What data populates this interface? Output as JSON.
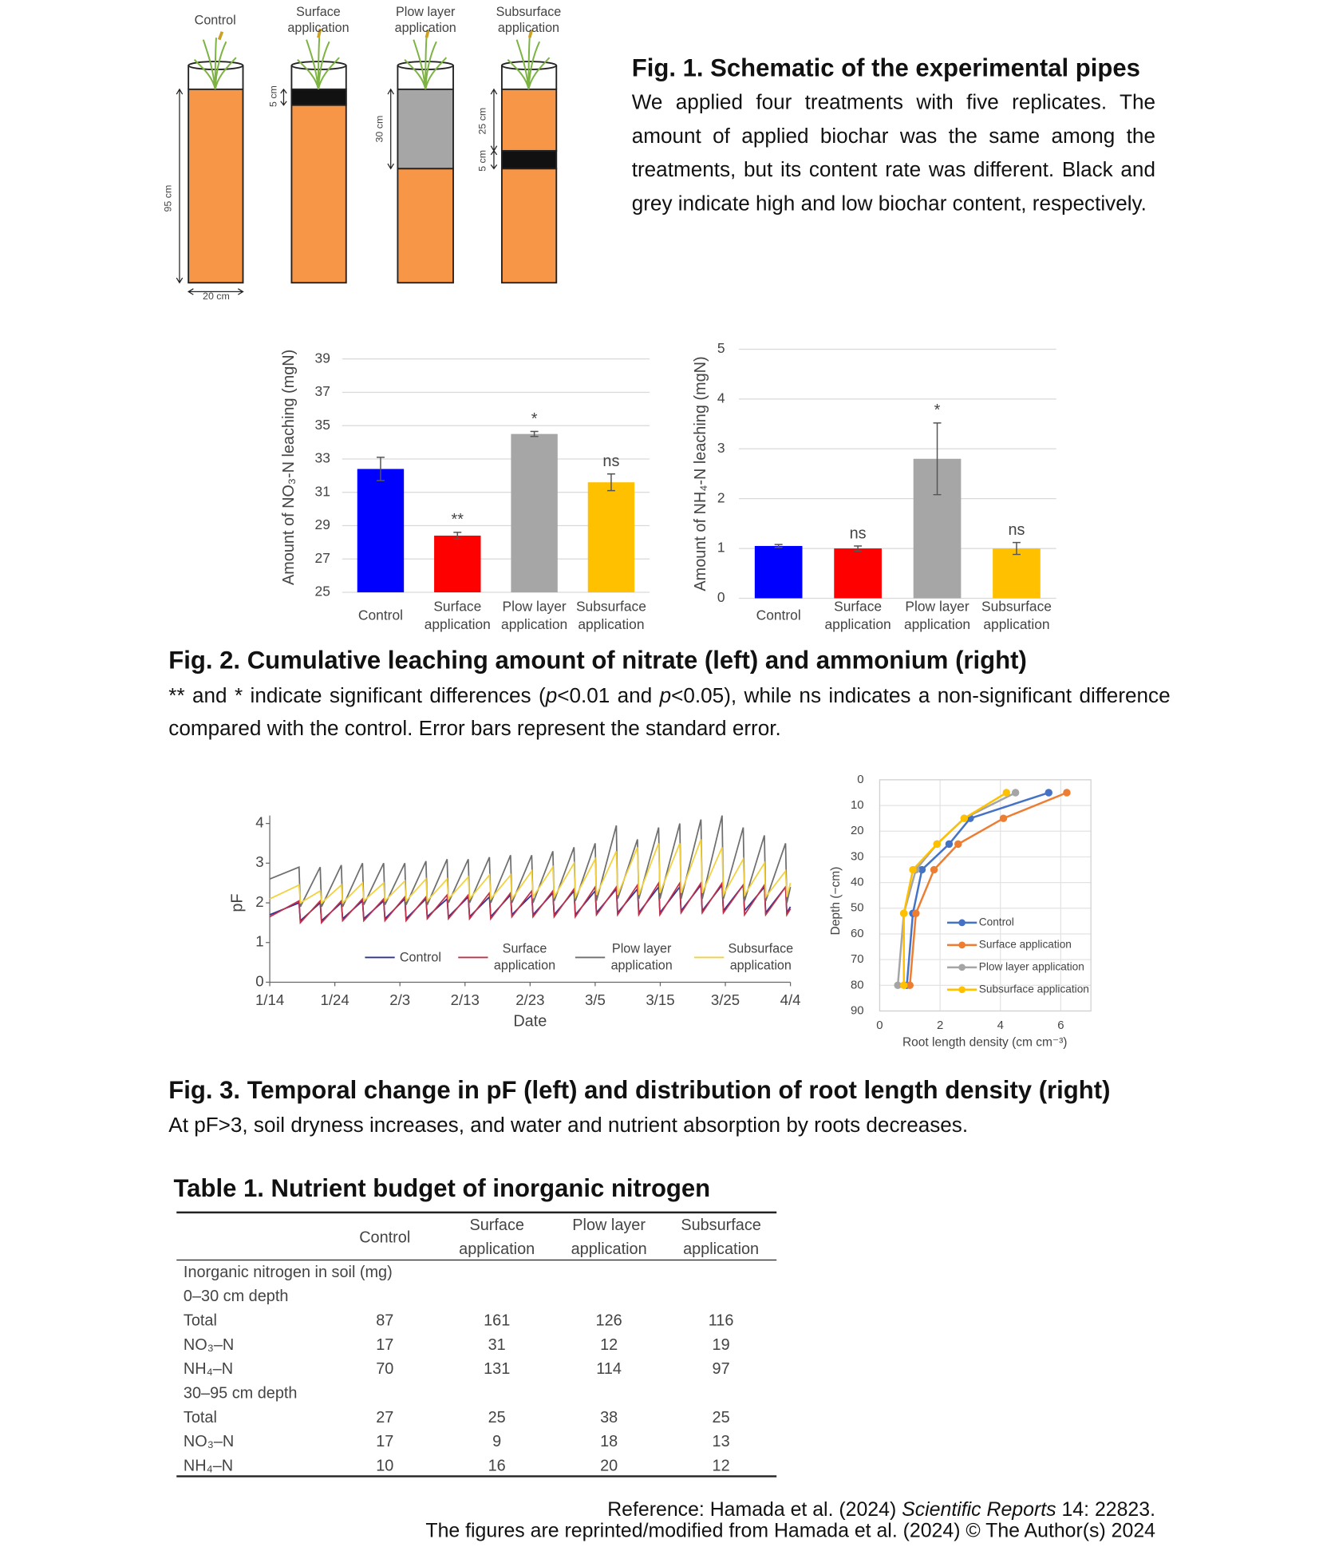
{
  "fig1": {
    "pipes": [
      "Control",
      "Surface application",
      "Plow layer application",
      "Subsurface application"
    ],
    "dims": {
      "surface_band": "5 cm",
      "plow_band": "30 cm",
      "subsurface_top": "25 cm",
      "subsurface_band": "5 cm",
      "height": "95 cm",
      "width": "20 cm"
    },
    "title": "Fig. 1. Schematic of the experimental pipes",
    "text": "We applied four treatments with five replicates. The amount of applied biochar was the same among the treatments, but its content rate was different. Black and grey indicate high and low biochar content, respectively."
  },
  "fig2": {
    "title": "Fig. 2. Cumulative leaching amount of nitrate (left) and ammonium (right)",
    "text": [
      "** and * indicate significant differences (",
      "p",
      "<0.01 and ",
      "p",
      "<0.05), while ns indicates a non-significant difference compared with the control. Error bars represent the standard error."
    ]
  },
  "fig3": {
    "title": "Fig. 3. Temporal change in pF (left) and distribution of root length density (right)",
    "text": "At pF>3, soil dryness increases, and water and nutrient absorption by roots decreases."
  },
  "chart_data": [
    {
      "type": "bar",
      "ylabel": "Amount of NO₃-N leaching (mgN)",
      "categories": [
        "Control",
        "Surface application",
        "Plow layer application",
        "Subsurface application"
      ],
      "values": [
        32.4,
        28.4,
        34.5,
        31.6
      ],
      "errors": [
        0.7,
        0.2,
        0.15,
        0.5
      ],
      "annotations": [
        null,
        "**",
        "*",
        "ns"
      ],
      "colors": [
        "#0000ff",
        "#ff0000",
        "#a6a6a6",
        "#ffc000"
      ],
      "ylim": [
        25,
        40
      ],
      "yticks": [
        25,
        27,
        29,
        31,
        33,
        35,
        37,
        39
      ],
      "grid": true
    },
    {
      "type": "bar",
      "ylabel": "Amount of NH₄-N leaching (mgN)",
      "categories": [
        "Control",
        "Surface application",
        "Plow layer application",
        "Subsurface application"
      ],
      "values": [
        1.05,
        1.0,
        2.8,
        1.0
      ],
      "errors": [
        0.03,
        0.05,
        0.72,
        0.12
      ],
      "annotations": [
        null,
        "ns",
        "*",
        "ns"
      ],
      "colors": [
        "#0000ff",
        "#ff0000",
        "#a6a6a6",
        "#ffc000"
      ],
      "ylim": [
        0,
        5
      ],
      "yticks": [
        0,
        1,
        2,
        3,
        4,
        5
      ],
      "grid": true
    },
    {
      "type": "line",
      "ylabel": "pF",
      "xlabel": "Date",
      "x": [
        0,
        4.5,
        4.7,
        7.75,
        7.95,
        11,
        11.2,
        14.25,
        14.45,
        17.5,
        17.7,
        20.75,
        20.95,
        24,
        24.2,
        27.25,
        27.45,
        30.5,
        30.7,
        33.75,
        33.95,
        37,
        37.2,
        40.25,
        40.45,
        43.5,
        43.7,
        46.75,
        46.95,
        50,
        50.2,
        53.25,
        53.45,
        56.5,
        56.7,
        59.75,
        59.95,
        63,
        63.2,
        66.25,
        66.45,
        69.5,
        69.7,
        72.75,
        72.95,
        76,
        76.2,
        79.25,
        79.45,
        80
      ],
      "series": [
        {
          "name": "Control",
          "color": "#2e3192",
          "values": [
            1.7,
            2.0,
            1.55,
            2.0,
            1.55,
            2.0,
            1.6,
            2.05,
            1.6,
            2.05,
            1.6,
            2.1,
            1.6,
            2.1,
            1.65,
            2.1,
            1.65,
            2.15,
            1.65,
            2.15,
            1.65,
            2.2,
            1.7,
            2.2,
            1.7,
            2.25,
            1.7,
            2.3,
            1.7,
            2.3,
            1.75,
            2.35,
            1.75,
            2.35,
            1.75,
            2.4,
            1.75,
            2.4,
            1.8,
            2.45,
            1.8,
            2.45,
            1.8,
            2.45,
            1.8,
            2.4,
            1.75,
            2.4,
            1.75,
            1.9
          ]
        },
        {
          "name": "Surface application",
          "color": "#c0304a",
          "values": [
            1.65,
            2.05,
            1.5,
            2.05,
            1.5,
            2.05,
            1.55,
            2.1,
            1.55,
            2.1,
            1.55,
            2.15,
            1.55,
            2.15,
            1.6,
            2.2,
            1.6,
            2.2,
            1.6,
            2.25,
            1.6,
            2.25,
            1.65,
            2.3,
            1.65,
            2.3,
            1.65,
            2.35,
            1.65,
            2.4,
            1.7,
            2.4,
            1.7,
            2.45,
            1.7,
            2.5,
            1.7,
            2.5,
            1.75,
            2.5,
            1.75,
            2.5,
            1.75,
            2.45,
            1.7,
            2.45,
            1.7,
            2.4,
            1.7,
            1.85
          ]
        },
        {
          "name": "Plow layer application",
          "color": "#6e6e6e",
          "values": [
            2.6,
            2.9,
            1.9,
            2.9,
            1.9,
            2.95,
            1.9,
            3.0,
            1.95,
            3.0,
            1.95,
            3.0,
            1.95,
            3.05,
            1.95,
            3.1,
            2.0,
            3.1,
            2.0,
            3.15,
            2.0,
            3.2,
            2.0,
            3.2,
            2.0,
            3.3,
            2.05,
            3.4,
            2.05,
            3.5,
            2.05,
            3.95,
            2.1,
            3.6,
            2.1,
            3.9,
            2.1,
            4.0,
            2.1,
            4.1,
            2.1,
            4.2,
            2.1,
            3.9,
            2.05,
            3.7,
            2.05,
            3.5,
            2.0,
            2.4
          ]
        },
        {
          "name": "Subsurface application",
          "color": "#f2d13c",
          "values": [
            2.1,
            2.45,
            2.0,
            2.3,
            2.0,
            2.45,
            2.0,
            2.5,
            2.05,
            2.5,
            2.05,
            2.55,
            2.05,
            2.6,
            2.05,
            2.6,
            2.1,
            2.65,
            2.1,
            2.7,
            2.1,
            2.7,
            2.1,
            2.8,
            2.15,
            2.9,
            2.15,
            3.0,
            2.15,
            3.1,
            2.2,
            3.3,
            2.2,
            3.4,
            2.2,
            3.5,
            2.25,
            3.5,
            2.25,
            3.6,
            2.25,
            3.4,
            2.2,
            3.1,
            2.2,
            3.0,
            2.15,
            2.8,
            2.15,
            2.5
          ]
        }
      ],
      "xlim": [
        0,
        80
      ],
      "xticks": [
        {
          "value": 0,
          "label": "1/14"
        },
        {
          "value": 10,
          "label": "1/24"
        },
        {
          "value": 20,
          "label": "2/3"
        },
        {
          "value": 30,
          "label": "2/13"
        },
        {
          "value": 40,
          "label": "2/23"
        },
        {
          "value": 50,
          "label": "3/5"
        },
        {
          "value": 60,
          "label": "3/15"
        },
        {
          "value": 70,
          "label": "3/25"
        },
        {
          "value": 80,
          "label": "4/4"
        }
      ],
      "ylim": [
        0,
        4.2
      ],
      "yticks": [
        0,
        1,
        2,
        3,
        4
      ],
      "legend": "bottom"
    },
    {
      "type": "line",
      "ylabel": "Depth (−cm)",
      "xlabel": "Root length density (cm cm⁻³)",
      "y": [
        5,
        15,
        25,
        35,
        52,
        80
      ],
      "series": [
        {
          "name": "Control",
          "color": "#4472c4",
          "values": [
            5.6,
            3.0,
            2.3,
            1.4,
            1.1,
            0.9
          ]
        },
        {
          "name": "Surface application",
          "color": "#ed7d31",
          "values": [
            6.2,
            4.1,
            2.6,
            1.8,
            1.2,
            1.0
          ]
        },
        {
          "name": "Plow layer application",
          "color": "#a5a5a5",
          "values": [
            4.5,
            2.8,
            1.9,
            1.2,
            0.8,
            0.6
          ]
        },
        {
          "name": "Subsurface application",
          "color": "#ffc000",
          "values": [
            4.2,
            2.8,
            1.9,
            1.1,
            0.8,
            0.8
          ]
        }
      ],
      "xlim": [
        0,
        7
      ],
      "xticks": [
        0,
        2,
        4,
        6
      ],
      "ylim": [
        0,
        90
      ],
      "yticks": [
        0,
        10,
        20,
        30,
        40,
        50,
        60,
        70,
        80,
        90
      ],
      "y_inverted": true,
      "grid": true,
      "legend": "right"
    }
  ],
  "table": {
    "title": "Table 1. Nutrient budget of inorganic nitrogen",
    "columns": [
      "Control",
      "Surface application",
      "Plow layer application",
      "Subsurface application"
    ],
    "rows": [
      {
        "label": "Inorganic nitrogen in soil (mg)"
      },
      {
        "label": "0–30 cm depth"
      },
      {
        "label": "Total",
        "values": [
          87,
          161,
          126,
          116
        ]
      },
      {
        "label": "NO₃–N",
        "values": [
          17,
          31,
          12,
          19
        ]
      },
      {
        "label": "NH₄–N",
        "values": [
          70,
          131,
          114,
          97
        ]
      },
      {
        "label": "30–95 cm depth"
      },
      {
        "label": "Total",
        "values": [
          27,
          25,
          38,
          25
        ]
      },
      {
        "label": "NO₃–N",
        "values": [
          17,
          9,
          18,
          13
        ]
      },
      {
        "label": "NH₄–N",
        "values": [
          10,
          16,
          20,
          12
        ]
      }
    ]
  },
  "reference": {
    "line1": [
      "Reference: Hamada et al. (2024) ",
      "Scientific Reports",
      " 14: 22823."
    ],
    "line2": "The figures are reprinted/modified from Hamada et al. (2024) © The Author(s) 2024"
  }
}
